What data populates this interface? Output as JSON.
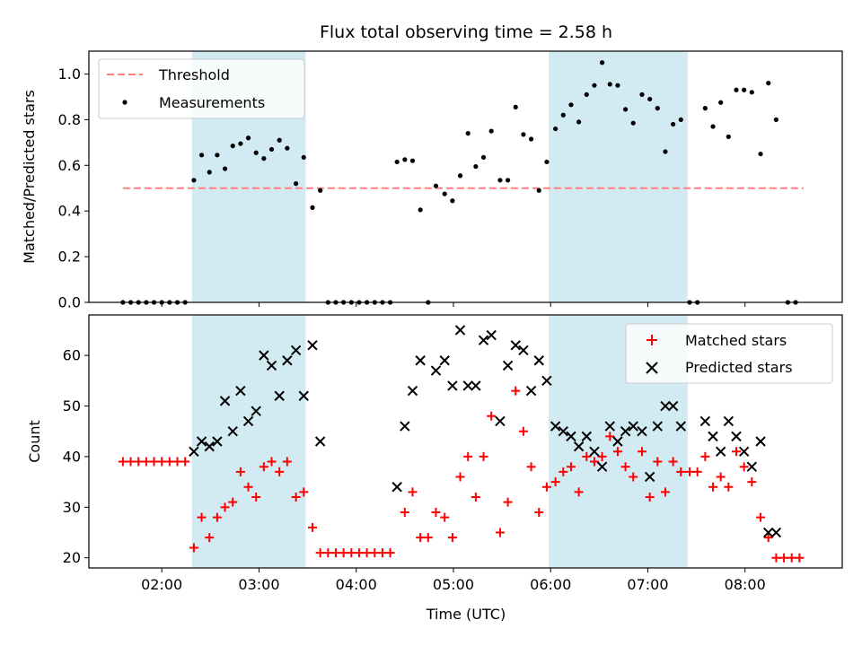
{
  "chart_data": {
    "type": "scatter",
    "title": "Flux total observing time = 2.58 h",
    "xlabel": "Time (UTC)",
    "x_ticks": [
      "02:00",
      "03:00",
      "04:00",
      "05:00",
      "06:00",
      "07:00",
      "08:00"
    ],
    "xlim_hours": [
      1.25,
      9.0
    ],
    "shaded_intervals_hours": [
      [
        2.31,
        3.48
      ],
      [
        5.98,
        7.41
      ]
    ],
    "shade_color": "#add8e6",
    "top": {
      "ylabel": "Matched/Predicted stars",
      "ylim": [
        0,
        1.1
      ],
      "yticks": [
        "0.0",
        "0.2",
        "0.4",
        "0.6",
        "0.8",
        "1.0"
      ],
      "threshold": {
        "name": "Threshold",
        "value": 0.5,
        "x_range": [
          1.6,
          8.6
        ],
        "color": "#ff7f7f"
      },
      "measurements": {
        "name": "Measurements",
        "color": "#000000",
        "points": [
          [
            1.6,
            0
          ],
          [
            1.68,
            0
          ],
          [
            1.76,
            0
          ],
          [
            1.84,
            0
          ],
          [
            1.92,
            0
          ],
          [
            2.0,
            0
          ],
          [
            2.08,
            0
          ],
          [
            2.16,
            0
          ],
          [
            2.24,
            0
          ],
          [
            2.33,
            0.535
          ],
          [
            2.41,
            0.645
          ],
          [
            2.49,
            0.57
          ],
          [
            2.57,
            0.645
          ],
          [
            2.65,
            0.585
          ],
          [
            2.73,
            0.685
          ],
          [
            2.81,
            0.695
          ],
          [
            2.89,
            0.72
          ],
          [
            2.97,
            0.655
          ],
          [
            3.05,
            0.63
          ],
          [
            3.13,
            0.67
          ],
          [
            3.21,
            0.71
          ],
          [
            3.29,
            0.675
          ],
          [
            3.38,
            0.52
          ],
          [
            3.46,
            0.635
          ],
          [
            3.55,
            0.415
          ],
          [
            3.63,
            0.49
          ],
          [
            3.71,
            0
          ],
          [
            3.79,
            0
          ],
          [
            3.87,
            0
          ],
          [
            3.95,
            0
          ],
          [
            4.03,
            0
          ],
          [
            4.11,
            0
          ],
          [
            4.19,
            0
          ],
          [
            4.27,
            0
          ],
          [
            4.35,
            0
          ],
          [
            4.42,
            0.615
          ],
          [
            4.5,
            0.625
          ],
          [
            4.58,
            0.62
          ],
          [
            4.66,
            0.405
          ],
          [
            4.74,
            0
          ],
          [
            4.82,
            0.51
          ],
          [
            4.91,
            0.475
          ],
          [
            4.99,
            0.445
          ],
          [
            5.07,
            0.555
          ],
          [
            5.15,
            0.74
          ],
          [
            5.23,
            0.595
          ],
          [
            5.31,
            0.635
          ],
          [
            5.39,
            0.75
          ],
          [
            5.48,
            0.535
          ],
          [
            5.56,
            0.535
          ],
          [
            5.64,
            0.855
          ],
          [
            5.72,
            0.735
          ],
          [
            5.8,
            0.715
          ],
          [
            5.88,
            0.49
          ],
          [
            5.96,
            0.615
          ],
          [
            6.05,
            0.76
          ],
          [
            6.13,
            0.82
          ],
          [
            6.21,
            0.865
          ],
          [
            6.29,
            0.79
          ],
          [
            6.37,
            0.91
          ],
          [
            6.45,
            0.95
          ],
          [
            6.53,
            1.05
          ],
          [
            6.61,
            0.955
          ],
          [
            6.69,
            0.95
          ],
          [
            6.77,
            0.845
          ],
          [
            6.85,
            0.785
          ],
          [
            6.94,
            0.91
          ],
          [
            7.02,
            0.89
          ],
          [
            7.1,
            0.85
          ],
          [
            7.18,
            0.66
          ],
          [
            7.26,
            0.78
          ],
          [
            7.34,
            0.8
          ],
          [
            7.43,
            0
          ],
          [
            7.51,
            0
          ],
          [
            7.59,
            0.85
          ],
          [
            7.67,
            0.77
          ],
          [
            7.75,
            0.875
          ],
          [
            7.83,
            0.725
          ],
          [
            7.91,
            0.93
          ],
          [
            7.99,
            0.93
          ],
          [
            8.07,
            0.92
          ],
          [
            8.16,
            0.65
          ],
          [
            8.24,
            0.96
          ],
          [
            8.32,
            0.8
          ],
          [
            8.44,
            0
          ],
          [
            8.52,
            0
          ]
        ]
      }
    },
    "bottom": {
      "ylabel": "Count",
      "ylim": [
        18,
        68
      ],
      "yticks": [
        "20",
        "30",
        "40",
        "50",
        "60"
      ],
      "matched": {
        "name": "Matched stars",
        "color": "#ff0000",
        "points": [
          [
            1.6,
            39
          ],
          [
            1.68,
            39
          ],
          [
            1.76,
            39
          ],
          [
            1.84,
            39
          ],
          [
            1.92,
            39
          ],
          [
            2.0,
            39
          ],
          [
            2.08,
            39
          ],
          [
            2.16,
            39
          ],
          [
            2.24,
            39
          ],
          [
            2.33,
            22
          ],
          [
            2.41,
            28
          ],
          [
            2.49,
            24
          ],
          [
            2.57,
            28
          ],
          [
            2.65,
            30
          ],
          [
            2.73,
            31
          ],
          [
            2.81,
            37
          ],
          [
            2.89,
            34
          ],
          [
            2.97,
            32
          ],
          [
            3.05,
            38
          ],
          [
            3.13,
            39
          ],
          [
            3.21,
            37
          ],
          [
            3.29,
            39
          ],
          [
            3.38,
            32
          ],
          [
            3.46,
            33
          ],
          [
            3.55,
            26
          ],
          [
            3.63,
            21
          ],
          [
            3.71,
            21
          ],
          [
            3.79,
            21
          ],
          [
            3.87,
            21
          ],
          [
            3.95,
            21
          ],
          [
            4.03,
            21
          ],
          [
            4.11,
            21
          ],
          [
            4.19,
            21
          ],
          [
            4.27,
            21
          ],
          [
            4.35,
            21
          ],
          [
            4.5,
            29
          ],
          [
            4.58,
            33
          ],
          [
            4.66,
            24
          ],
          [
            4.74,
            24
          ],
          [
            4.82,
            29
          ],
          [
            4.91,
            28
          ],
          [
            4.99,
            24
          ],
          [
            5.07,
            36
          ],
          [
            5.15,
            40
          ],
          [
            5.23,
            32
          ],
          [
            5.31,
            40
          ],
          [
            5.39,
            48
          ],
          [
            5.48,
            25
          ],
          [
            5.56,
            31
          ],
          [
            5.64,
            53
          ],
          [
            5.72,
            45
          ],
          [
            5.8,
            38
          ],
          [
            5.88,
            29
          ],
          [
            5.96,
            34
          ],
          [
            6.05,
            35
          ],
          [
            6.13,
            37
          ],
          [
            6.21,
            38
          ],
          [
            6.29,
            33
          ],
          [
            6.37,
            40
          ],
          [
            6.45,
            39
          ],
          [
            6.53,
            40
          ],
          [
            6.61,
            44
          ],
          [
            6.69,
            41
          ],
          [
            6.77,
            38
          ],
          [
            6.85,
            36
          ],
          [
            6.94,
            41
          ],
          [
            7.02,
            32
          ],
          [
            7.1,
            39
          ],
          [
            7.18,
            33
          ],
          [
            7.26,
            39
          ],
          [
            7.34,
            37
          ],
          [
            7.43,
            37
          ],
          [
            7.51,
            37
          ],
          [
            7.59,
            40
          ],
          [
            7.67,
            34
          ],
          [
            7.75,
            36
          ],
          [
            7.83,
            34
          ],
          [
            7.91,
            41
          ],
          [
            7.99,
            38
          ],
          [
            8.07,
            35
          ],
          [
            8.16,
            28
          ],
          [
            8.24,
            24
          ],
          [
            8.32,
            20
          ],
          [
            8.4,
            20
          ],
          [
            8.48,
            20
          ],
          [
            8.56,
            20
          ]
        ]
      },
      "predicted": {
        "name": "Predicted stars",
        "color": "#000000",
        "points": [
          [
            2.33,
            41
          ],
          [
            2.41,
            43
          ],
          [
            2.49,
            42
          ],
          [
            2.57,
            43
          ],
          [
            2.65,
            51
          ],
          [
            2.73,
            45
          ],
          [
            2.81,
            53
          ],
          [
            2.89,
            47
          ],
          [
            2.97,
            49
          ],
          [
            3.05,
            60
          ],
          [
            3.13,
            58
          ],
          [
            3.21,
            52
          ],
          [
            3.29,
            59
          ],
          [
            3.38,
            61
          ],
          [
            3.46,
            52
          ],
          [
            3.55,
            62
          ],
          [
            3.63,
            43
          ],
          [
            4.42,
            34
          ],
          [
            4.5,
            46
          ],
          [
            4.58,
            53
          ],
          [
            4.66,
            59
          ],
          [
            4.82,
            57
          ],
          [
            4.91,
            59
          ],
          [
            4.99,
            54
          ],
          [
            5.07,
            65
          ],
          [
            5.15,
            54
          ],
          [
            5.23,
            54
          ],
          [
            5.31,
            63
          ],
          [
            5.39,
            64
          ],
          [
            5.48,
            47
          ],
          [
            5.56,
            58
          ],
          [
            5.64,
            62
          ],
          [
            5.72,
            61
          ],
          [
            5.8,
            53
          ],
          [
            5.88,
            59
          ],
          [
            5.96,
            55
          ],
          [
            6.05,
            46
          ],
          [
            6.13,
            45
          ],
          [
            6.21,
            44
          ],
          [
            6.29,
            42
          ],
          [
            6.37,
            44
          ],
          [
            6.45,
            41
          ],
          [
            6.53,
            38
          ],
          [
            6.61,
            46
          ],
          [
            6.69,
            43
          ],
          [
            6.77,
            45
          ],
          [
            6.85,
            46
          ],
          [
            6.94,
            45
          ],
          [
            7.02,
            36
          ],
          [
            7.1,
            46
          ],
          [
            7.18,
            50
          ],
          [
            7.26,
            50
          ],
          [
            7.34,
            46
          ],
          [
            7.59,
            47
          ],
          [
            7.67,
            44
          ],
          [
            7.75,
            41
          ],
          [
            7.83,
            47
          ],
          [
            7.91,
            44
          ],
          [
            7.99,
            41
          ],
          [
            8.07,
            38
          ],
          [
            8.16,
            43
          ],
          [
            8.24,
            25
          ],
          [
            8.32,
            25
          ]
        ]
      }
    }
  }
}
